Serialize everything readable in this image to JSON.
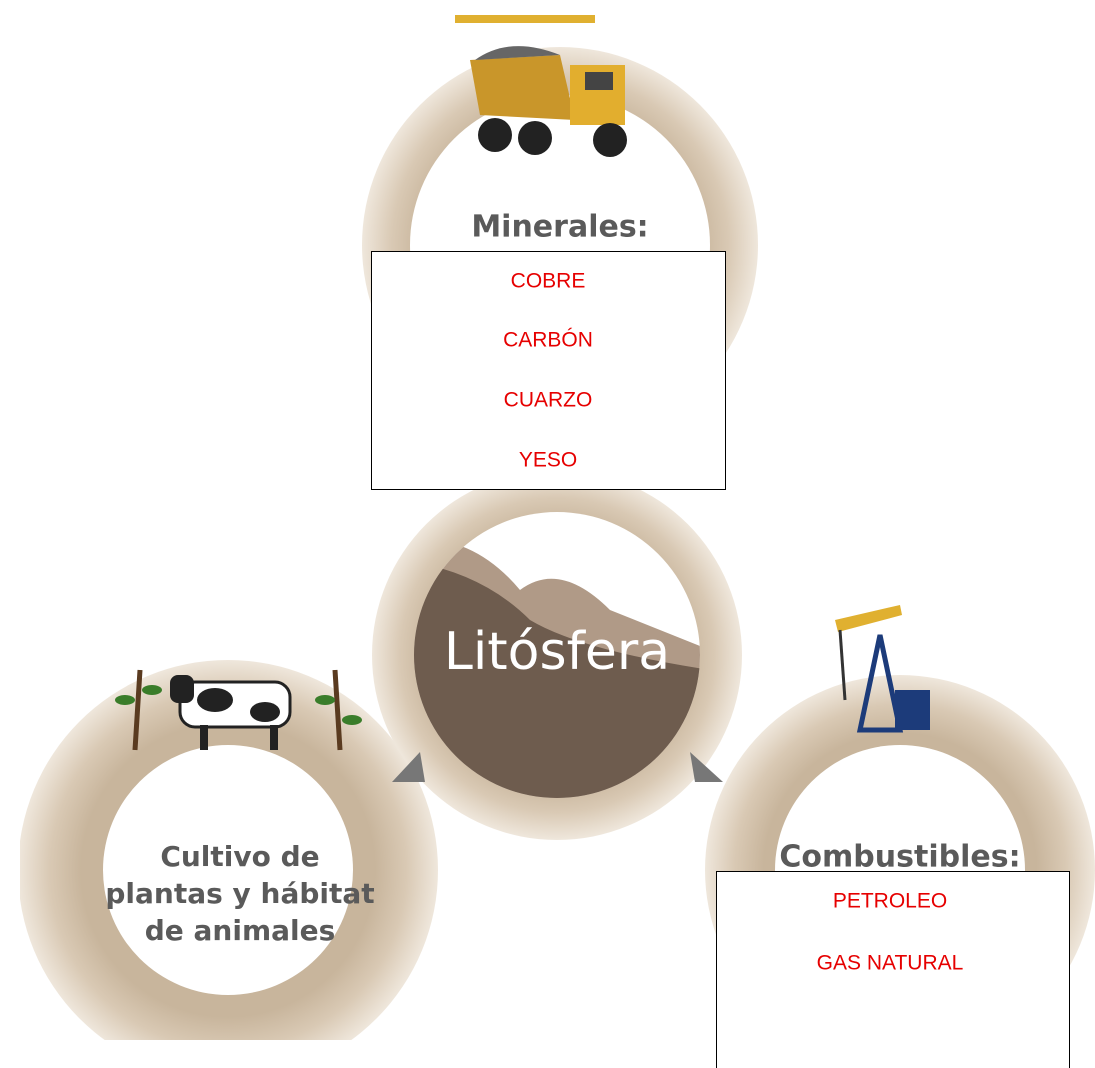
{
  "center": {
    "label": "Litósfera"
  },
  "nodes": [
    {
      "title": "Minerales:",
      "items": [
        "COBRE",
        "CARBÓN",
        "CUARZO",
        "YESO"
      ]
    },
    {
      "title": "Combustibles:",
      "items": [
        "PETROLEO",
        "GAS NATURAL"
      ]
    },
    {
      "lines": [
        "Cultivo de",
        "plantas y hábitat",
        "de animales"
      ]
    }
  ]
}
